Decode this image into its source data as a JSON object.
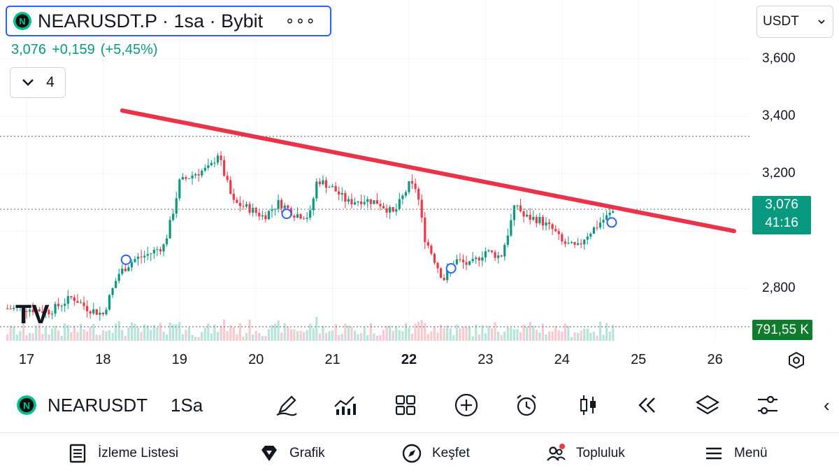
{
  "symbol": {
    "title": "NEARUSDT.P · 1sa · Bybit",
    "more_label": "∘∘∘",
    "logo_letter": "N",
    "last": "3,076",
    "change": "+0,159",
    "change_pct": "(+5,45%)"
  },
  "collapse": {
    "count": "4"
  },
  "currency": {
    "selected": "USDT"
  },
  "price_axis": {
    "ticks": [
      {
        "label": "3,600",
        "value": 3.6
      },
      {
        "label": "3,400",
        "value": 3.4
      },
      {
        "label": "3,200",
        "value": 3.2
      },
      {
        "label": "2,800",
        "value": 2.8
      }
    ],
    "current_price": "3,076",
    "countdown": "41:16",
    "volume": "791,55 K"
  },
  "time_axis": {
    "labels": [
      {
        "label": "17",
        "bold": false
      },
      {
        "label": "18",
        "bold": false
      },
      {
        "label": "19",
        "bold": false
      },
      {
        "label": "20",
        "bold": false
      },
      {
        "label": "21",
        "bold": false
      },
      {
        "label": "22",
        "bold": true
      },
      {
        "label": "23",
        "bold": false
      },
      {
        "label": "24",
        "bold": false
      },
      {
        "label": "25",
        "bold": false
      },
      {
        "label": "26",
        "bold": false
      }
    ]
  },
  "chart_data": {
    "type": "line",
    "series": [
      {
        "x": [
          17.0,
          17.3,
          17.6,
          17.8,
          18.0,
          18.2,
          18.4,
          18.6,
          18.8,
          18.9,
          19.0,
          19.2,
          19.4,
          19.5,
          19.7,
          19.9,
          20.1,
          20.3,
          20.5,
          20.7,
          20.8,
          21.0,
          21.2,
          21.4,
          21.6,
          21.8,
          22.0,
          22.1,
          22.2,
          22.4,
          22.45,
          22.6,
          22.8,
          23.0,
          23.2,
          23.3,
          23.4,
          23.5,
          23.7,
          23.9,
          24.0,
          24.2,
          24.3,
          24.5,
          24.7
        ],
        "values": [
          2.73,
          2.72,
          2.77,
          2.73,
          2.71,
          2.85,
          2.9,
          2.92,
          2.95,
          3.05,
          3.17,
          3.2,
          3.22,
          3.27,
          3.1,
          3.08,
          3.05,
          3.1,
          3.06,
          3.05,
          3.18,
          3.15,
          3.1,
          3.11,
          3.1,
          3.06,
          3.16,
          3.15,
          2.98,
          2.86,
          2.83,
          2.9,
          2.88,
          2.93,
          2.91,
          3.0,
          3.1,
          3.05,
          3.04,
          3.0,
          2.96,
          2.94,
          2.98,
          3.03,
          3.076
        ]
      }
    ],
    "trendline": {
      "x": [
        18.25,
        26.25
      ],
      "values": [
        3.42,
        3.0
      ]
    },
    "markers": {
      "x": [
        18.3,
        20.4,
        22.55,
        24.65
      ],
      "values": [
        2.9,
        3.06,
        2.87,
        3.03
      ]
    },
    "ylim": [
      2.62,
      3.71
    ],
    "xlim": [
      16.68,
      26.71
    ],
    "reference_lines": [
      3.33,
      3.076
    ]
  },
  "toolbar": {
    "symbol": "NEARUSDT",
    "interval": "1Sa",
    "back_label": "‹"
  },
  "nav": {
    "watchlist": "İzleme Listesi",
    "chart": "Grafik",
    "explore": "Keşfet",
    "community": "Topluluk",
    "menu": "Menü"
  },
  "colors": {
    "up": "#089981",
    "down": "#f23645",
    "trend": "#e8334a",
    "accent": "#2962ff",
    "volume_badge": "#0f7b2c"
  }
}
